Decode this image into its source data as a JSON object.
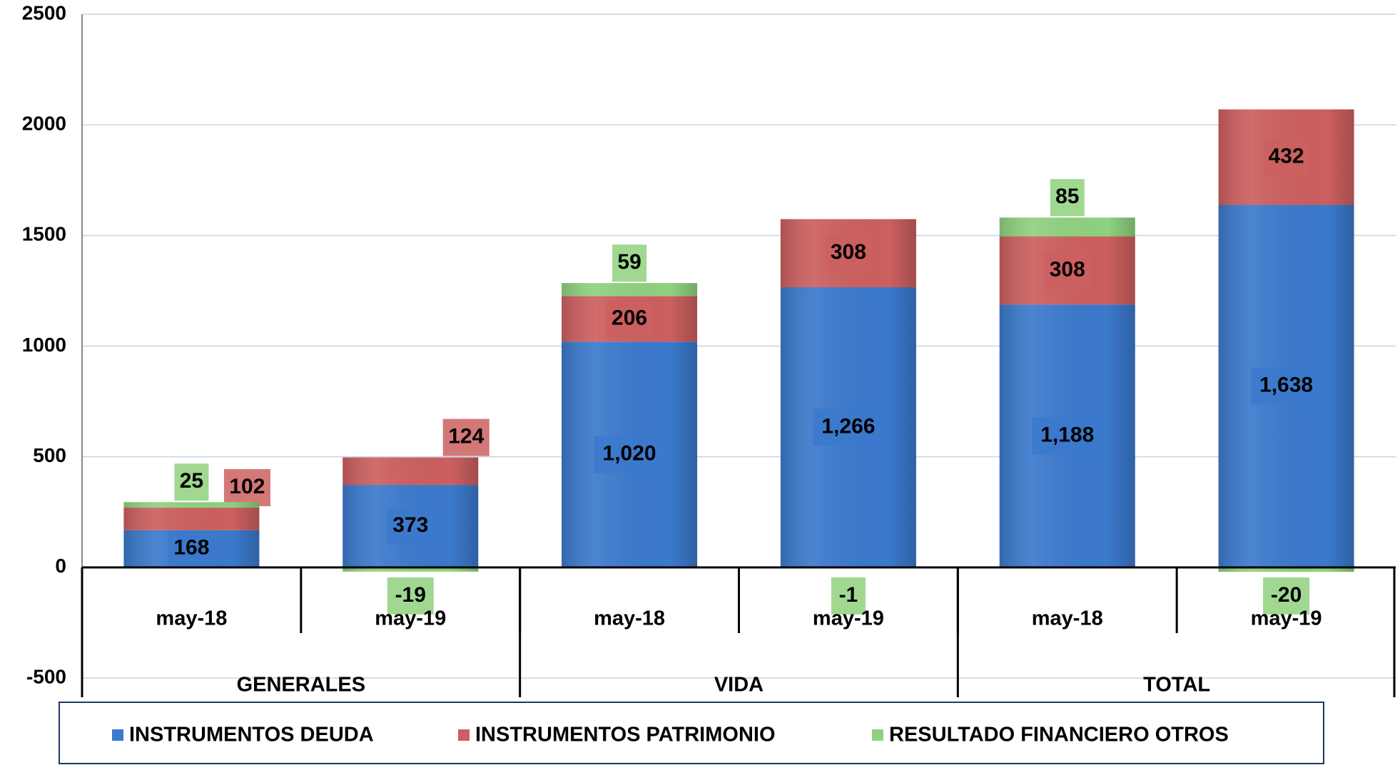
{
  "chart_data": {
    "type": "stacked_bar",
    "categories": [
      "may-18",
      "may-19",
      "may-18",
      "may-19",
      "may-18",
      "may-19"
    ],
    "groups": [
      "GENERALES",
      "VIDA",
      "TOTAL"
    ],
    "series": [
      {
        "name": "INSTRUMENTOS DEUDA",
        "color": "#3b79cc",
        "values": [
          168,
          373,
          1020,
          1266,
          1188,
          1638
        ],
        "value_labels": [
          "168",
          "373",
          "1,020",
          "1,266",
          "1,188",
          "1,638"
        ]
      },
      {
        "name": "INSTRUMENTOS PATRIMONIO",
        "color": "#cc5f5f",
        "values": [
          102,
          124,
          206,
          308,
          308,
          432
        ]
      },
      {
        "name": "RESULTADO FINANCIERO OTROS",
        "color": "#8fd17f",
        "values": [
          25,
          -19,
          59,
          -1,
          85,
          -20
        ]
      }
    ],
    "ylim": [
      -500,
      2500
    ],
    "yticks": [
      -500,
      0,
      500,
      1000,
      1500,
      2000,
      2500
    ],
    "grid": true,
    "legend": "bottom"
  }
}
